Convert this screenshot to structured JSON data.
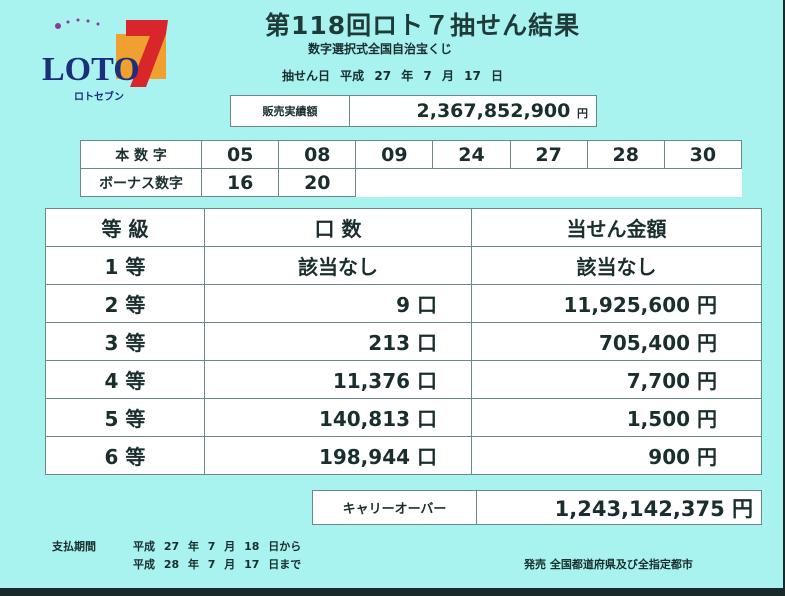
{
  "logo": {
    "text": "LOTO",
    "digit": "7",
    "kana": "ロトセブン"
  },
  "header": {
    "title": "第118回ロト７抽せん結果",
    "subtitle": "数字選択式全国自治宝くじ",
    "draw_date": "抽せん日 平成 27 年 7 月 17 日"
  },
  "sales": {
    "label": "販売実績額",
    "value": "2,367,852,900",
    "unit": "円"
  },
  "numbers": {
    "main_label": "本 数 字",
    "main": [
      "05",
      "08",
      "09",
      "24",
      "27",
      "28",
      "30"
    ],
    "bonus_label": "ボーナス数字",
    "bonus": [
      "16",
      "20"
    ]
  },
  "prizes": {
    "headers": [
      "等 級",
      "口 数",
      "当せん金額"
    ],
    "rows": [
      {
        "grade": "1 等",
        "count": "該当なし",
        "amount": "該当なし"
      },
      {
        "grade": "2 等",
        "count": "9 口",
        "amount": "11,925,600 円"
      },
      {
        "grade": "3 等",
        "count": "213 口",
        "amount": "705,400 円"
      },
      {
        "grade": "4 等",
        "count": "11,376 口",
        "amount": "7,700 円"
      },
      {
        "grade": "5 等",
        "count": "140,813 口",
        "amount": "1,500 円"
      },
      {
        "grade": "6 等",
        "count": "198,944 口",
        "amount": "900 円"
      }
    ]
  },
  "carryover": {
    "label": "キャリーオーバー",
    "value": "1,243,142,375",
    "unit": "円"
  },
  "footer": {
    "payment_label": "支払期間",
    "payment_from": "平成 27 年 7 月 18 日から",
    "payment_to": "平成 28 年 7 月 17 日まで",
    "issuer": "発売 全国都道府県及び全指定都市"
  },
  "colors": {
    "background": "#a8f2f0",
    "logo_red": "#d8262a",
    "logo_orange": "#f0a030",
    "logo_navy": "#1c2f7a"
  }
}
